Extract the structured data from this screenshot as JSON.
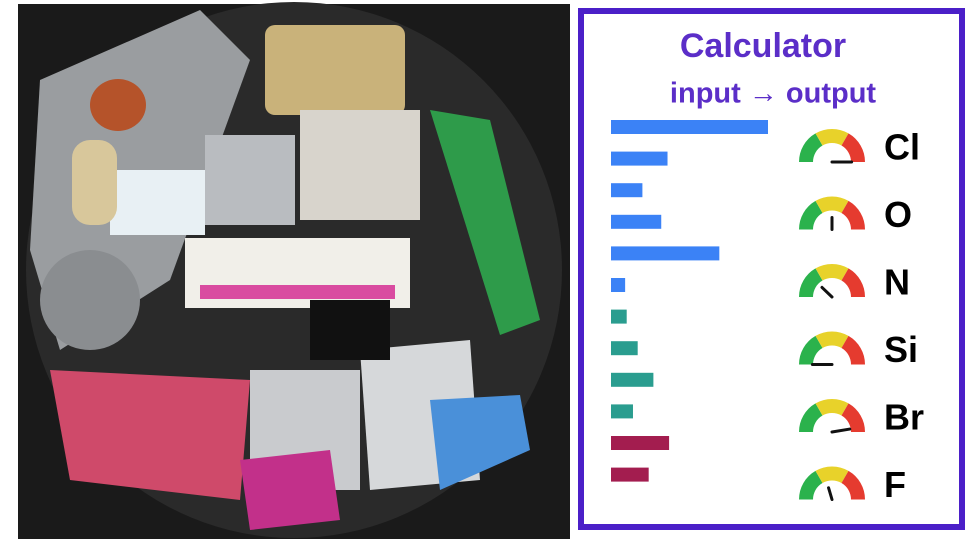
{
  "panel": {
    "title": "Calculator",
    "subtitle": "input → output",
    "bars": [
      {
        "color": "#3b82f6",
        "values": [
          100,
          36
        ]
      },
      {
        "color": "#3b82f6",
        "values": [
          20,
          32
        ]
      },
      {
        "color": "#3b82f6",
        "values": [
          69,
          9
        ]
      },
      {
        "color": "#2a9d8f",
        "values": [
          10,
          17
        ]
      },
      {
        "color": "#2a9d8f",
        "values": [
          27,
          14
        ]
      },
      {
        "color": "#a31d4f",
        "values": [
          37,
          24
        ]
      }
    ],
    "elements": [
      "Cl",
      "O",
      "N",
      "Si",
      "Br",
      "F"
    ],
    "gauges": [
      85,
      50,
      35,
      15,
      80,
      45
    ]
  }
}
